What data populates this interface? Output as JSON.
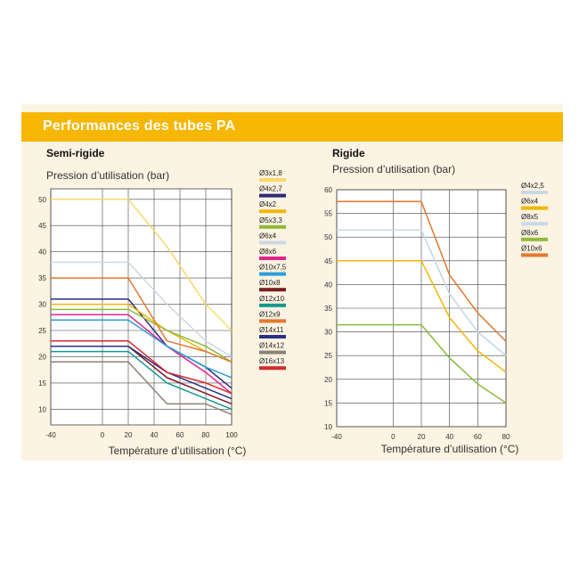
{
  "banner": {
    "title": "Performances des tubes PA"
  },
  "colors": {
    "banner": "#f7b600",
    "panel": "#fdf3e2",
    "grid": "#444444"
  },
  "chart_data": [
    {
      "type": "line",
      "title": "Semi-rigide",
      "ylabel": "Pression d’utilisation (bar)",
      "xlabel": "Température d’utilisation (°C)",
      "x": [
        -40,
        0,
        20,
        40,
        60,
        80,
        100
      ],
      "xlim": [
        -40,
        100
      ],
      "ylim": [
        7,
        52
      ],
      "yticks": [
        10,
        15,
        20,
        25,
        30,
        35,
        40,
        45,
        50
      ],
      "legend_position": "right",
      "series": [
        {
          "name": "Ø3x1,8",
          "color": "#fbd86a",
          "points": [
            [
              -40,
              50
            ],
            [
              20,
              50
            ],
            [
              50,
              41
            ],
            [
              80,
              30
            ],
            [
              100,
              25
            ]
          ]
        },
        {
          "name": "Ø4x2,7",
          "color": "#2e2a7a",
          "points": [
            [
              -40,
              31
            ],
            [
              20,
              31
            ],
            [
              50,
              22
            ],
            [
              80,
              18
            ],
            [
              100,
              14
            ]
          ]
        },
        {
          "name": "Ø4x2",
          "color": "#f2b705",
          "points": [
            [
              -40,
              30
            ],
            [
              20,
              30
            ],
            [
              50,
              25
            ],
            [
              80,
              21
            ],
            [
              100,
              19
            ]
          ]
        },
        {
          "name": "Ø5x3,3",
          "color": "#8dbb3a",
          "points": [
            [
              -40,
              29
            ],
            [
              20,
              29
            ],
            [
              50,
              25
            ],
            [
              80,
              22
            ],
            [
              100,
              19
            ]
          ]
        },
        {
          "name": "Ø6x4",
          "color": "#c9d9e8",
          "points": [
            [
              -40,
              38
            ],
            [
              20,
              38
            ],
            [
              50,
              30
            ],
            [
              80,
              23
            ],
            [
              100,
              20
            ]
          ]
        },
        {
          "name": "Ø8x6",
          "color": "#e2238c",
          "points": [
            [
              -40,
              28
            ],
            [
              20,
              28
            ],
            [
              50,
              22
            ],
            [
              80,
              17
            ],
            [
              100,
              13
            ]
          ]
        },
        {
          "name": "Ø10x7,5",
          "color": "#2a9fd8",
          "points": [
            [
              -40,
              27
            ],
            [
              20,
              27
            ],
            [
              50,
              22
            ],
            [
              80,
              18
            ],
            [
              100,
              16
            ]
          ]
        },
        {
          "name": "Ø10x8",
          "color": "#7a1f22",
          "points": [
            [
              -40,
              22
            ],
            [
              20,
              22
            ],
            [
              50,
              16
            ],
            [
              80,
              13
            ],
            [
              100,
              11
            ]
          ]
        },
        {
          "name": "Ø12x10",
          "color": "#14988f",
          "points": [
            [
              -40,
              21
            ],
            [
              20,
              21
            ],
            [
              50,
              15
            ],
            [
              80,
              12
            ],
            [
              100,
              10
            ]
          ]
        },
        {
          "name": "Ø12x9",
          "color": "#e4782f",
          "points": [
            [
              -40,
              35
            ],
            [
              20,
              35
            ],
            [
              50,
              23
            ],
            [
              80,
              21
            ],
            [
              100,
              19
            ]
          ]
        },
        {
          "name": "Ø14x11",
          "color": "#2b2f86",
          "points": [
            [
              -40,
              22
            ],
            [
              20,
              22
            ],
            [
              50,
              17
            ],
            [
              80,
              14
            ],
            [
              100,
              12
            ]
          ]
        },
        {
          "name": "Ø14x12",
          "color": "#8b8278",
          "points": [
            [
              -40,
              19
            ],
            [
              20,
              19
            ],
            [
              50,
              11
            ],
            [
              80,
              11
            ],
            [
              100,
              9
            ]
          ]
        },
        {
          "name": "Ø16x13",
          "color": "#d62929",
          "points": [
            [
              -40,
              23
            ],
            [
              20,
              23
            ],
            [
              50,
              17
            ],
            [
              80,
              15
            ],
            [
              100,
              13
            ]
          ]
        }
      ]
    },
    {
      "type": "line",
      "title": "Rigide",
      "ylabel": "Pression d’utilisation (bar)",
      "xlabel": "Température d’utilisation (°C)",
      "x": [
        -40,
        0,
        20,
        40,
        60,
        80
      ],
      "xlim": [
        -40,
        80
      ],
      "ylim": [
        10,
        60
      ],
      "yticks": [
        10,
        15,
        20,
        25,
        30,
        35,
        40,
        45,
        50,
        55,
        60
      ],
      "legend_position": "right",
      "series": [
        {
          "name": "Ø4x2,5",
          "color": "#c9d9e8",
          "points": [
            [
              -40,
              51.5
            ],
            [
              20,
              51.5
            ],
            [
              40,
              38
            ],
            [
              60,
              30
            ],
            [
              80,
              25
            ]
          ]
        },
        {
          "name": "Ø6x4",
          "color": "#f2b705",
          "points": [
            [
              -40,
              45
            ],
            [
              20,
              45
            ],
            [
              40,
              33
            ],
            [
              60,
              26
            ],
            [
              80,
              21.5
            ]
          ]
        },
        {
          "name": "Ø8x5",
          "color": "#c9d9e8",
          "points": [
            [
              -40,
              51.5
            ],
            [
              20,
              51.5
            ],
            [
              40,
              38
            ],
            [
              60,
              30
            ],
            [
              80,
              25
            ]
          ]
        },
        {
          "name": "Ø8x6",
          "color": "#8dbb3a",
          "points": [
            [
              -40,
              31.5
            ],
            [
              20,
              31.5
            ],
            [
              40,
              24.5
            ],
            [
              60,
              19
            ],
            [
              80,
              15
            ]
          ]
        },
        {
          "name": "Ø10x6",
          "color": "#e4782f",
          "points": [
            [
              -40,
              57.5
            ],
            [
              20,
              57.5
            ],
            [
              40,
              42
            ],
            [
              60,
              34
            ],
            [
              80,
              28
            ]
          ]
        }
      ]
    }
  ]
}
